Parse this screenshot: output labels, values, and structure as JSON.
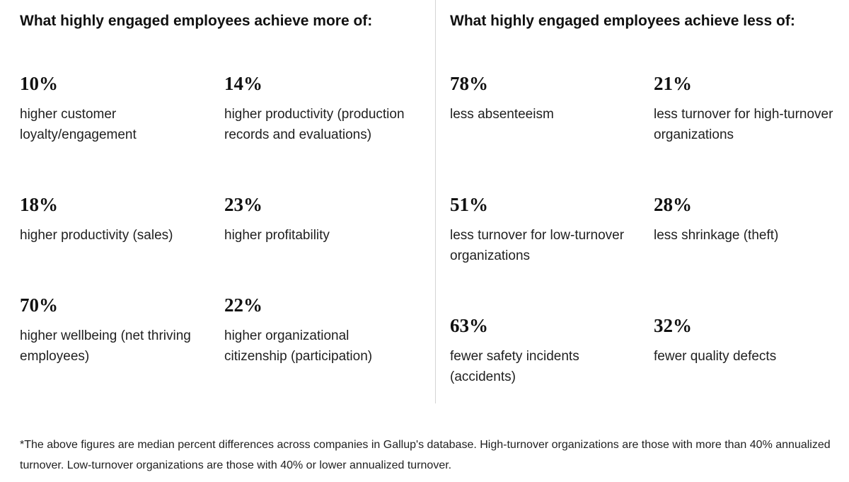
{
  "left_panel": {
    "heading": "What highly engaged employees achieve more of:",
    "stats": [
      {
        "percent": "10%",
        "description": "higher customer loyalty/engagement"
      },
      {
        "percent": "14%",
        "description": "higher productivity (production records and evaluations)"
      },
      {
        "percent": "18%",
        "description": "higher productivity (sales)"
      },
      {
        "percent": "23%",
        "description": "higher profitability"
      },
      {
        "percent": "70%",
        "description": "higher wellbeing (net thriving employees)"
      },
      {
        "percent": "22%",
        "description": "higher organizational citizenship (participation)"
      }
    ]
  },
  "right_panel": {
    "heading": "What highly engaged employees achieve less of:",
    "stats": [
      {
        "percent": "78%",
        "description": "less absenteeism"
      },
      {
        "percent": "21%",
        "description": "less turnover for high-turnover organizations"
      },
      {
        "percent": "51%",
        "description": "less turnover for low-turnover organizations"
      },
      {
        "percent": "28%",
        "description": "less shrinkage (theft)"
      },
      {
        "percent": "63%",
        "description": "fewer safety incidents (accidents)"
      },
      {
        "percent": "32%",
        "description": "fewer quality defects"
      }
    ]
  },
  "footnote": "*The above figures are median percent differences across companies in Gallup's database. High-turnover organizations are those with more than 40% annualized turnover. Low-turnover organizations are those with 40% or lower annualized turnover."
}
